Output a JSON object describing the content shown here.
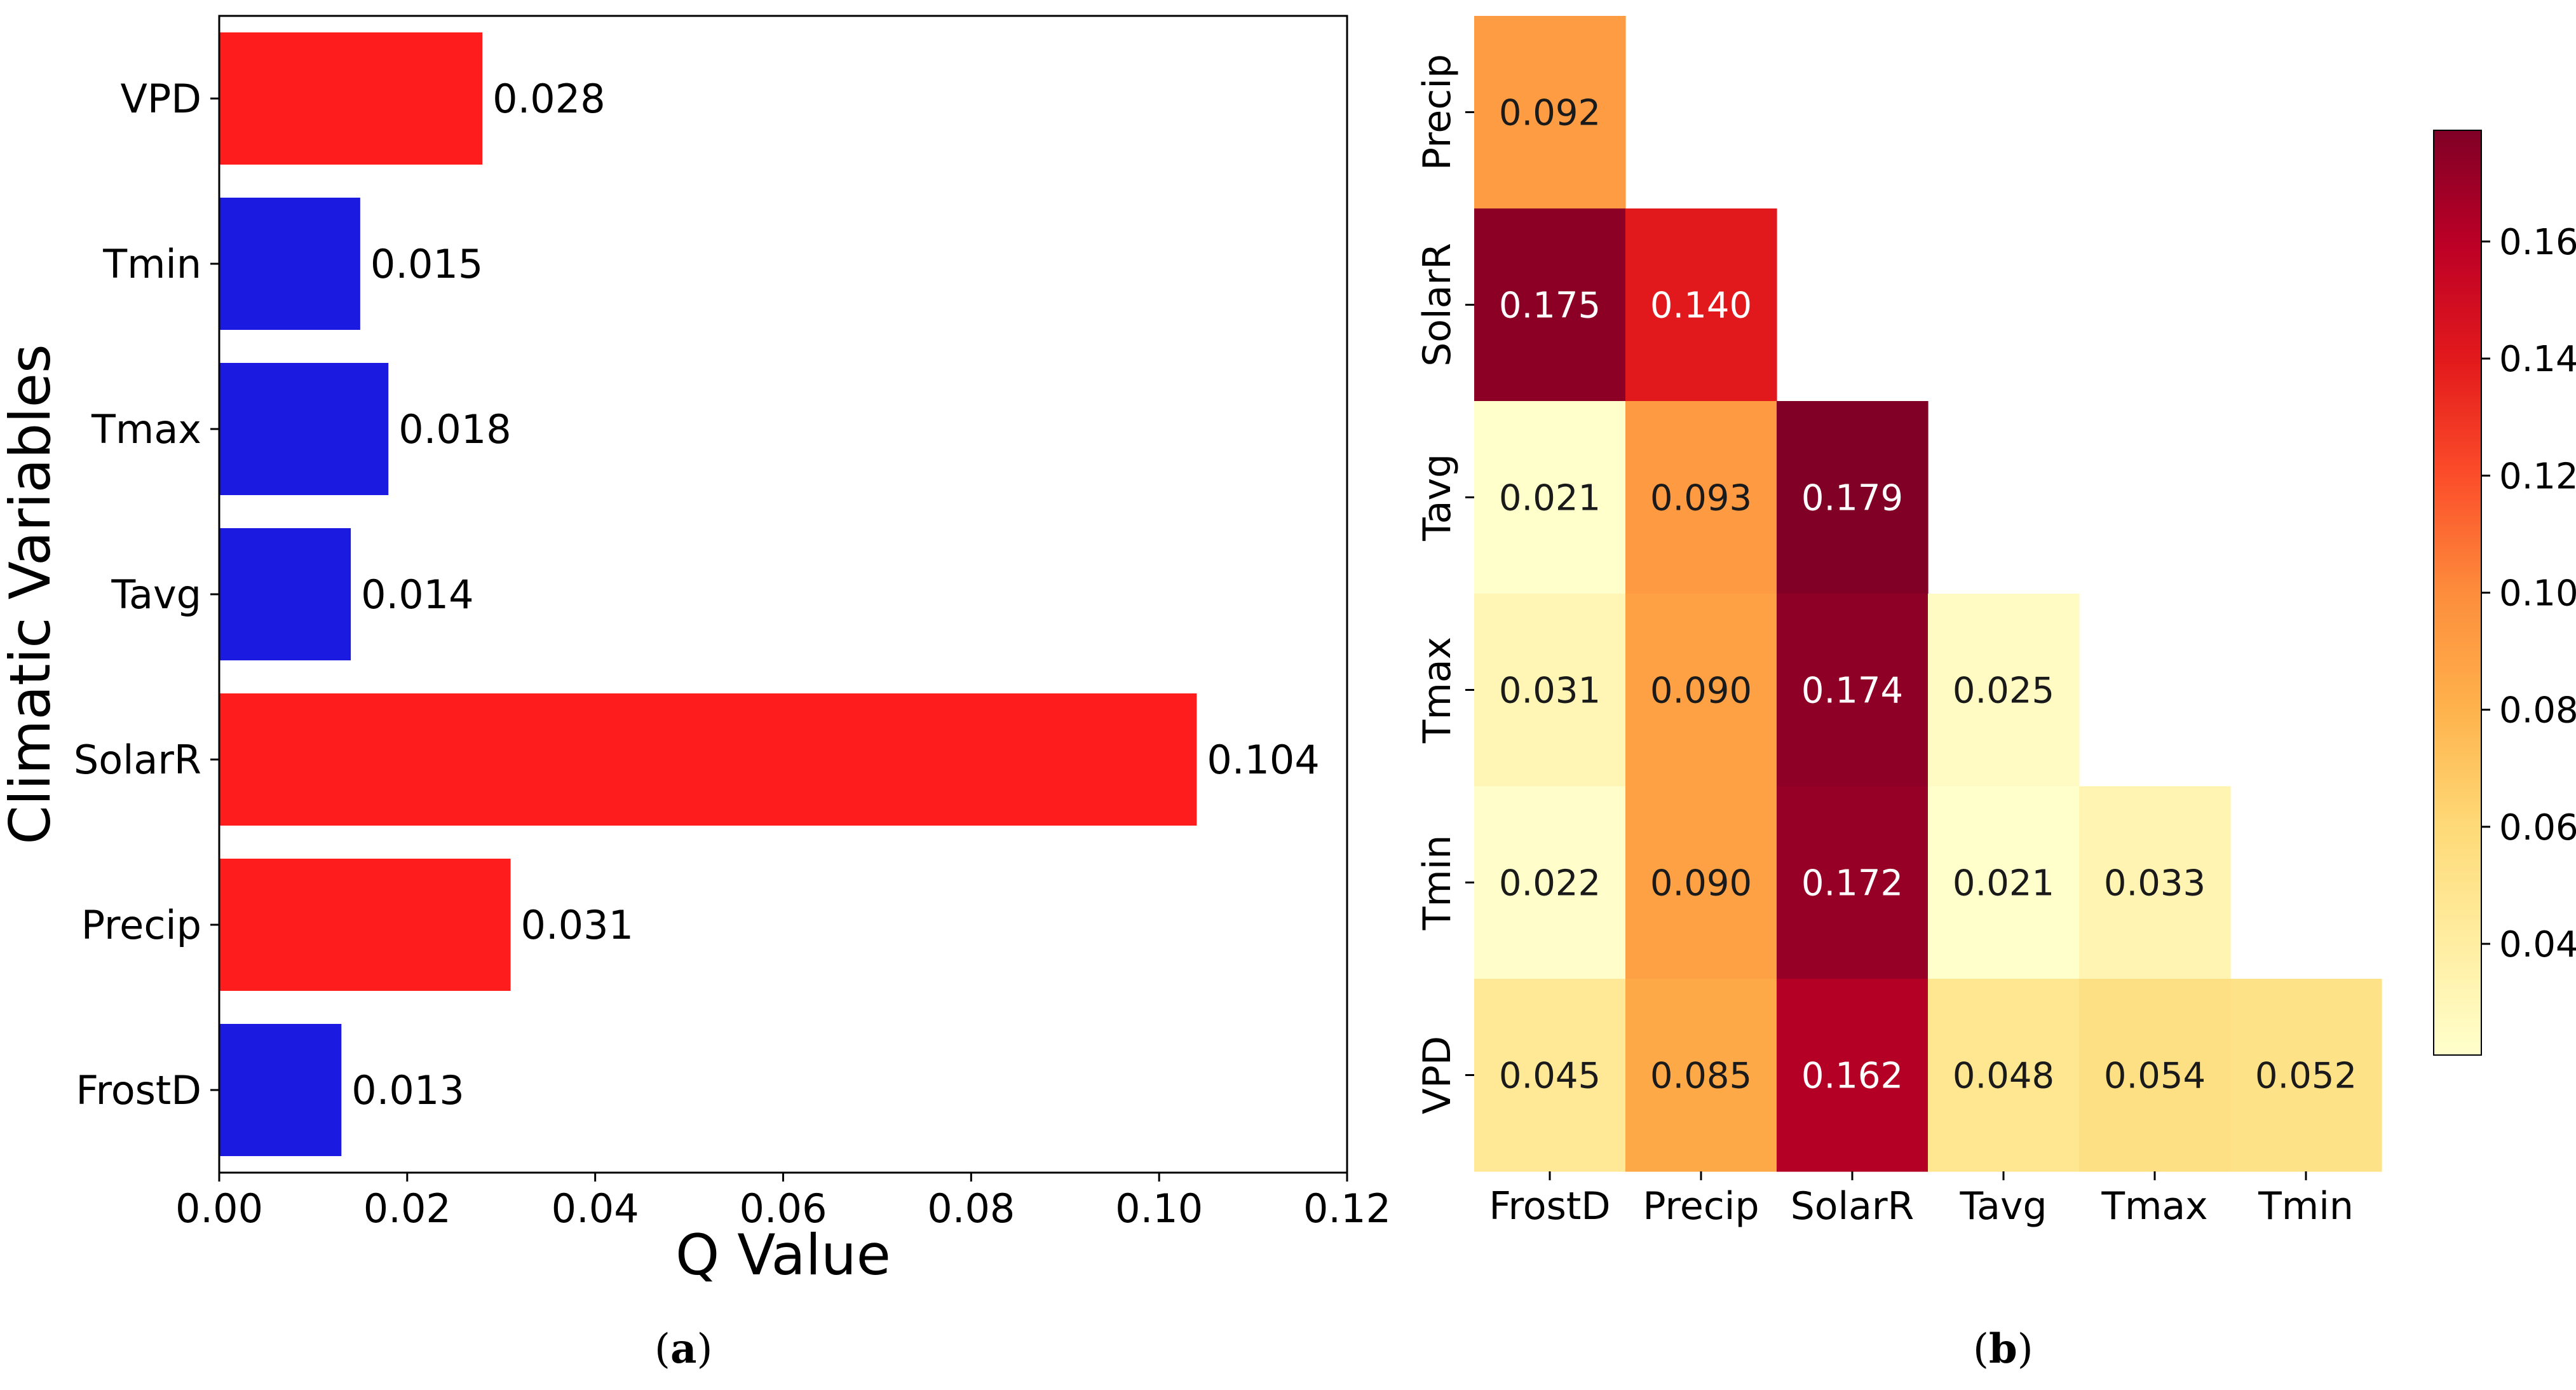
{
  "chart_data": [
    {
      "type": "bar",
      "orientation": "horizontal",
      "panel": "a",
      "categories": [
        "VPD",
        "Tmin",
        "Tmax",
        "Tavg",
        "SolarR",
        "Precip",
        "FrostD"
      ],
      "values": [
        0.028,
        0.015,
        0.018,
        0.014,
        0.104,
        0.031,
        0.013
      ],
      "value_labels": [
        "0.028",
        "0.015",
        "0.018",
        "0.014",
        "0.104",
        "0.031",
        "0.013"
      ],
      "bar_colors": [
        "#ff1c1c",
        "#1a1ae0",
        "#1a1ae0",
        "#1a1ae0",
        "#ff1c1c",
        "#ff1c1c",
        "#1a1ae0"
      ],
      "xlabel": "Q Value",
      "ylabel": "Climatic Variables",
      "xlim": [
        0,
        0.12
      ],
      "xticks": [
        "0.00",
        "0.02",
        "0.04",
        "0.06",
        "0.08",
        "0.10",
        "0.12"
      ]
    },
    {
      "type": "heatmap",
      "panel": "b",
      "rows": [
        "Precip",
        "SolarR",
        "Tavg",
        "Tmax",
        "Tmin",
        "VPD"
      ],
      "columns": [
        "FrostD",
        "Precip",
        "SolarR",
        "Tavg",
        "Tmax",
        "Tmin"
      ],
      "values": [
        [
          0.092,
          null,
          null,
          null,
          null,
          null
        ],
        [
          0.175,
          0.14,
          null,
          null,
          null,
          null
        ],
        [
          0.021,
          0.093,
          0.179,
          null,
          null,
          null
        ],
        [
          0.031,
          0.09,
          0.174,
          0.025,
          null,
          null
        ],
        [
          0.022,
          0.09,
          0.172,
          0.021,
          0.033,
          null
        ],
        [
          0.045,
          0.085,
          0.162,
          0.048,
          0.054,
          0.052
        ]
      ],
      "value_labels": [
        [
          "0.092",
          "",
          "",
          "",
          "",
          ""
        ],
        [
          "0.175",
          "0.140",
          "",
          "",
          "",
          ""
        ],
        [
          "0.021",
          "0.093",
          "0.179",
          "",
          "",
          ""
        ],
        [
          "0.031",
          "0.090",
          "0.174",
          "0.025",
          "",
          ""
        ],
        [
          "0.022",
          "0.090",
          "0.172",
          "0.021",
          "0.033",
          ""
        ],
        [
          "0.045",
          "0.085",
          "0.162",
          "0.048",
          "0.054",
          "0.052"
        ]
      ],
      "colormap": "YlOrRd",
      "color_range": [
        0.021,
        0.179
      ],
      "colorbar_ticks": [
        "0.04",
        "0.06",
        "0.08",
        "0.10",
        "0.12",
        "0.14",
        "0.16"
      ]
    }
  ],
  "panel_labels": {
    "a": "a",
    "b": "b"
  }
}
